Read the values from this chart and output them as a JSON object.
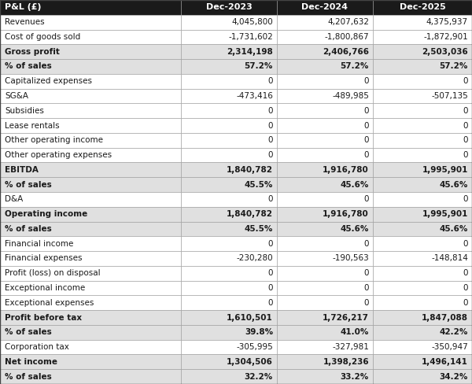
{
  "columns": [
    "P&L (£)",
    "Dec-2023",
    "Dec-2024",
    "Dec-2025"
  ],
  "rows": [
    {
      "label": "Revenues",
      "values": [
        "4,045,800",
        "4,207,632",
        "4,375,937"
      ],
      "bold": false,
      "shaded": false
    },
    {
      "label": "Cost of goods sold",
      "values": [
        "-1,731,602",
        "-1,800,867",
        "-1,872,901"
      ],
      "bold": false,
      "shaded": false
    },
    {
      "label": "Gross profit",
      "values": [
        "2,314,198",
        "2,406,766",
        "2,503,036"
      ],
      "bold": true,
      "shaded": true
    },
    {
      "label": "% of sales",
      "values": [
        "57.2%",
        "57.2%",
        "57.2%"
      ],
      "bold": true,
      "shaded": true
    },
    {
      "label": "Capitalized expenses",
      "values": [
        "0",
        "0",
        "0"
      ],
      "bold": false,
      "shaded": false
    },
    {
      "label": "SG&A",
      "values": [
        "-473,416",
        "-489,985",
        "-507,135"
      ],
      "bold": false,
      "shaded": false
    },
    {
      "label": "Subsidies",
      "values": [
        "0",
        "0",
        "0"
      ],
      "bold": false,
      "shaded": false
    },
    {
      "label": "Lease rentals",
      "values": [
        "0",
        "0",
        "0"
      ],
      "bold": false,
      "shaded": false
    },
    {
      "label": "Other operating income",
      "values": [
        "0",
        "0",
        "0"
      ],
      "bold": false,
      "shaded": false
    },
    {
      "label": "Other operating expenses",
      "values": [
        "0",
        "0",
        "0"
      ],
      "bold": false,
      "shaded": false
    },
    {
      "label": "EBITDA",
      "values": [
        "1,840,782",
        "1,916,780",
        "1,995,901"
      ],
      "bold": true,
      "shaded": true
    },
    {
      "label": "% of sales",
      "values": [
        "45.5%",
        "45.6%",
        "45.6%"
      ],
      "bold": true,
      "shaded": true
    },
    {
      "label": "D&A",
      "values": [
        "0",
        "0",
        "0"
      ],
      "bold": false,
      "shaded": false
    },
    {
      "label": "Operating income",
      "values": [
        "1,840,782",
        "1,916,780",
        "1,995,901"
      ],
      "bold": true,
      "shaded": true
    },
    {
      "label": "% of sales",
      "values": [
        "45.5%",
        "45.6%",
        "45.6%"
      ],
      "bold": true,
      "shaded": true
    },
    {
      "label": "Financial income",
      "values": [
        "0",
        "0",
        "0"
      ],
      "bold": false,
      "shaded": false
    },
    {
      "label": "Financial expenses",
      "values": [
        "-230,280",
        "-190,563",
        "-148,814"
      ],
      "bold": false,
      "shaded": false
    },
    {
      "label": "Profit (loss) on disposal",
      "values": [
        "0",
        "0",
        "0"
      ],
      "bold": false,
      "shaded": false
    },
    {
      "label": "Exceptional income",
      "values": [
        "0",
        "0",
        "0"
      ],
      "bold": false,
      "shaded": false
    },
    {
      "label": "Exceptional expenses",
      "values": [
        "0",
        "0",
        "0"
      ],
      "bold": false,
      "shaded": false
    },
    {
      "label": "Profit before tax",
      "values": [
        "1,610,501",
        "1,726,217",
        "1,847,088"
      ],
      "bold": true,
      "shaded": true
    },
    {
      "label": "% of sales",
      "values": [
        "39.8%",
        "41.0%",
        "42.2%"
      ],
      "bold": true,
      "shaded": true
    },
    {
      "label": "Corporation tax",
      "values": [
        "-305,995",
        "-327,981",
        "-350,947"
      ],
      "bold": false,
      "shaded": false
    },
    {
      "label": "Net income",
      "values": [
        "1,304,506",
        "1,398,236",
        "1,496,141"
      ],
      "bold": true,
      "shaded": true
    },
    {
      "label": "% of sales",
      "values": [
        "32.2%",
        "33.2%",
        "34.2%"
      ],
      "bold": true,
      "shaded": true
    }
  ],
  "header_bg": "#1a1a1a",
  "header_fg": "#ffffff",
  "shaded_bg": "#e0e0e0",
  "normal_bg": "#ffffff",
  "border_color": "#999999",
  "text_color": "#1a1a1a",
  "font_size": 7.5,
  "header_font_size": 8.0
}
